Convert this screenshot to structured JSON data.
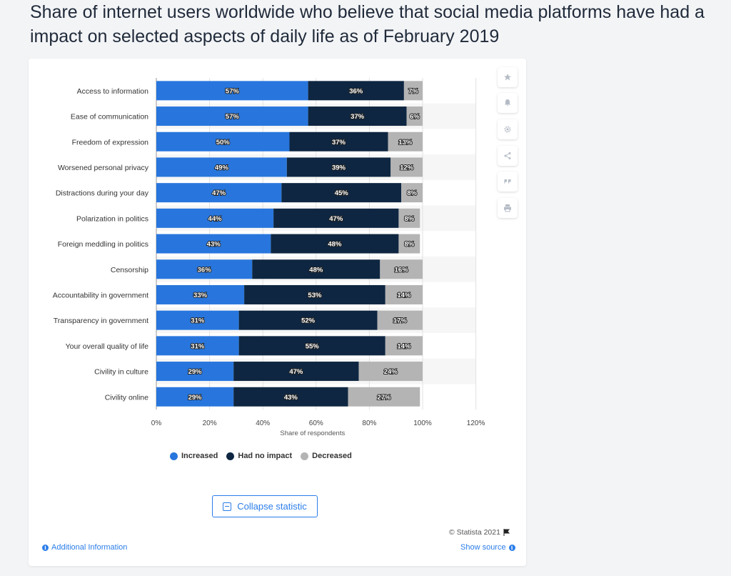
{
  "page": {
    "title": "Share of internet users worldwide who believe that social media platforms have had a",
    "title_line2": "impact on selected aspects of daily life as of February 2019"
  },
  "sidebar_buttons": [
    {
      "name": "star-icon"
    },
    {
      "name": "bell-icon"
    },
    {
      "name": "gear-icon"
    },
    {
      "name": "share-icon"
    },
    {
      "name": "quote-icon"
    },
    {
      "name": "print-icon"
    }
  ],
  "chart_data": {
    "type": "bar",
    "orientation": "horizontal",
    "stacked": true,
    "categories": [
      "Access to information",
      "Ease of communication",
      "Freedom of expression",
      "Worsened personal privacy",
      "Distractions during your day",
      "Polarization in politics",
      "Foreign meddling in politics",
      "Censorship",
      "Accountability in government",
      "Transparency in government",
      "Your overall quality of life",
      "Civility in culture",
      "Civility online"
    ],
    "series": [
      {
        "name": "Increased",
        "color": "#2876dd",
        "values": [
          57,
          57,
          50,
          49,
          47,
          44,
          43,
          36,
          33,
          31,
          31,
          29,
          29
        ]
      },
      {
        "name": "Had no impact",
        "color": "#0e2641",
        "values": [
          36,
          37,
          37,
          39,
          45,
          47,
          48,
          48,
          53,
          52,
          55,
          47,
          43
        ]
      },
      {
        "name": "Decreased",
        "color": "#b4b4b4",
        "values": [
          7,
          6,
          13,
          12,
          8,
          8,
          8,
          16,
          14,
          17,
          14,
          24,
          27
        ]
      }
    ],
    "value_suffix": "%",
    "xlim": [
      0,
      120
    ],
    "xticks": [
      "0%",
      "20%",
      "40%",
      "60%",
      "80%",
      "100%",
      "120%"
    ],
    "xlabel": "Share of respondents",
    "legend_position": "bottom"
  },
  "footer": {
    "collapse_label": "Collapse statistic",
    "copyright": "© Statista 2021",
    "additional_info": "Additional Information",
    "show_source": "Show source"
  }
}
